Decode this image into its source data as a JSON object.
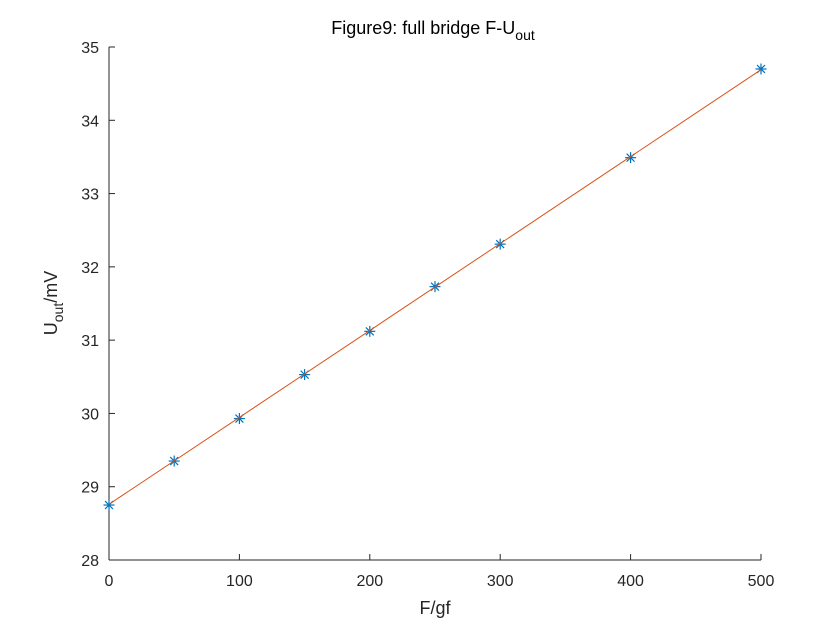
{
  "chart_data": {
    "type": "scatter",
    "title": "Figure9: full bridge F-U",
    "title_subscript": "out",
    "xlabel": "F/gf",
    "ylabel_main": "U",
    "ylabel_subscript": "out",
    "ylabel_suffix": "/mV",
    "xlim": [
      0,
      500
    ],
    "ylim": [
      28,
      35
    ],
    "xticks": [
      0,
      100,
      200,
      300,
      400,
      500
    ],
    "yticks": [
      28,
      29,
      30,
      31,
      32,
      33,
      34,
      35
    ],
    "grid": false,
    "legend": "none",
    "series": [
      {
        "kind": "scatter",
        "marker": "*",
        "color": "#0072BD",
        "x": [
          0,
          50,
          100,
          150,
          200,
          250,
          300,
          400,
          500
        ],
        "y": [
          28.75,
          29.35,
          29.93,
          30.53,
          31.12,
          31.73,
          32.31,
          33.49,
          34.7
        ]
      },
      {
        "kind": "line",
        "color": "#D95319",
        "x": [
          0,
          500
        ],
        "y": [
          28.76,
          34.69
        ]
      }
    ],
    "axis_color": "#262626"
  }
}
